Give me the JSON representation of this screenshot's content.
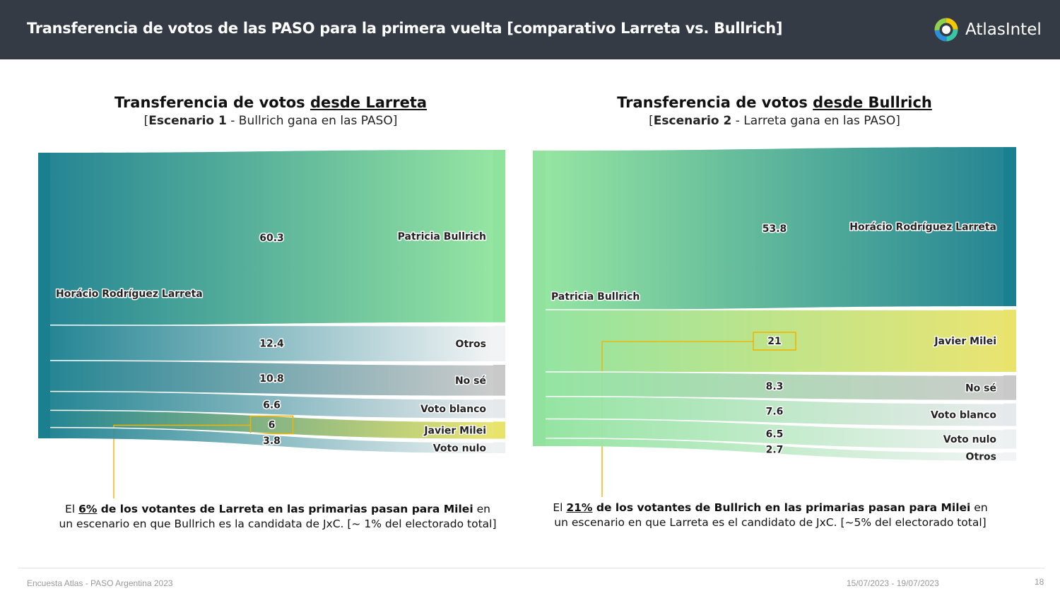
{
  "header": {
    "title": "Transferencia de votos de las PASO para la primera vuelta [comparativo Larreta vs. Bullrich]",
    "logo_text": "AtlasIntel",
    "logo_icon": "atlasintel-logo-icon",
    "bg_color": "#343b45"
  },
  "panels": [
    {
      "title_prefix": "Transferencia de votos ",
      "title_underlined": "desde Larreta",
      "subtitle_open": "[",
      "subtitle_bold": "Escenario 1",
      "subtitle_rest": " - Bullrich gana en las PASO]",
      "caption_pre": "El ",
      "caption_pct": "6%",
      "caption_bold": " de los votantes de Larreta en las primarias pasan para Milei",
      "caption_rest": " en un escenario en que Bullrich es la candidata de JxC. [~ 1% del electorado total]"
    },
    {
      "title_prefix": "Transferencia de votos ",
      "title_underlined": "desde Bullrich",
      "subtitle_open": "[",
      "subtitle_bold": "Escenario 2",
      "subtitle_rest": " - Larreta gana en las PASO]",
      "caption_pre": "El ",
      "caption_pct": "21%",
      "caption_bold": " de los votantes de Bullrich en las primarias pasan para Milei",
      "caption_rest": " en un escenario en que Larreta es el candidato de JxC. [~5% del electorado total]"
    }
  ],
  "chart_data": [
    {
      "type": "sankey",
      "source": "Horácio Rodríguez Larreta",
      "source_color": "#1a7f8e",
      "highlight": "Javier Milei",
      "flows": [
        {
          "target": "Patricia Bullrich",
          "value": 60.3,
          "label": "60.3",
          "color": "#8fe39d"
        },
        {
          "target": "Otros",
          "value": 12.4,
          "label": "12.4",
          "color": "#f1f3f4"
        },
        {
          "target": "No sé",
          "value": 10.8,
          "label": "10.8",
          "color": "#c9c9c9"
        },
        {
          "target": "Voto blanco",
          "value": 6.6,
          "label": "6.6",
          "color": "#e6e9eb"
        },
        {
          "target": "Javier Milei",
          "value": 6,
          "label": "6",
          "color": "#e8e36a"
        },
        {
          "target": "Voto nulo",
          "value": 3.8,
          "label": "3.8",
          "color": "#eef1f2"
        }
      ]
    },
    {
      "type": "sankey",
      "source": "Patricia Bullrich",
      "source_color": "#8fe39d",
      "highlight": "Javier Milei",
      "flows": [
        {
          "target": "Horácio Rodríguez Larreta",
          "value": 53.8,
          "label": "53.8",
          "color": "#1a7f8e"
        },
        {
          "target": "Javier Milei",
          "value": 21,
          "label": "21",
          "color": "#e8e36a"
        },
        {
          "target": "No sé",
          "value": 8.3,
          "label": "8.3",
          "color": "#c9c9c9"
        },
        {
          "target": "Voto blanco",
          "value": 7.6,
          "label": "7.6",
          "color": "#e6e9eb"
        },
        {
          "target": "Voto nulo",
          "value": 6.5,
          "label": "6.5",
          "color": "#eef1f2"
        },
        {
          "target": "Otros",
          "value": 2.7,
          "label": "2.7",
          "color": "#f1f3f4"
        }
      ]
    }
  ],
  "footer": {
    "left": "Encuesta Atlas - PASO Argentina 2023",
    "date": "15/07/2023 - 19/07/2023",
    "page": "18"
  }
}
